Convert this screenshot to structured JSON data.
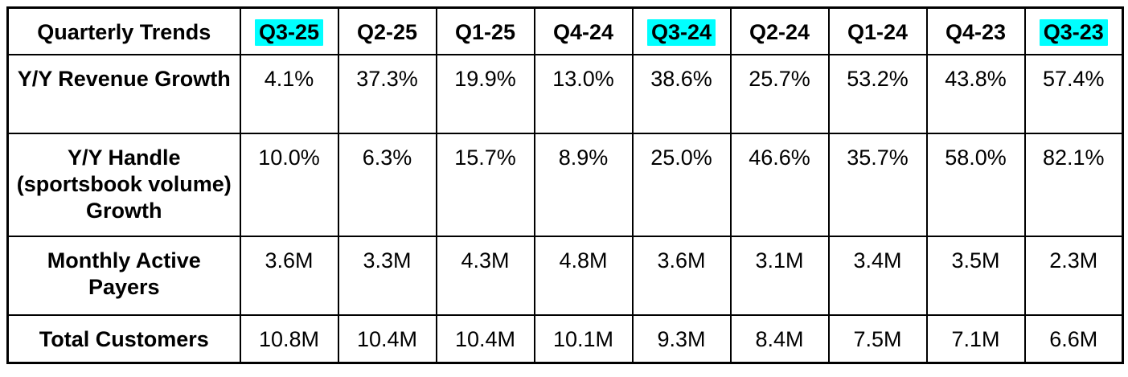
{
  "highlight_color": "#00ffff",
  "table": {
    "header": {
      "label": "Quarterly Trends",
      "columns": [
        {
          "label": "Q3-25",
          "highlighted": true
        },
        {
          "label": "Q2-25",
          "highlighted": false
        },
        {
          "label": "Q1-25",
          "highlighted": false
        },
        {
          "label": "Q4-24",
          "highlighted": false
        },
        {
          "label": "Q3-24",
          "highlighted": true
        },
        {
          "label": "Q2-24",
          "highlighted": false
        },
        {
          "label": "Q1-24",
          "highlighted": false
        },
        {
          "label": "Q4-23",
          "highlighted": false
        },
        {
          "label": "Q3-23",
          "highlighted": true
        }
      ]
    },
    "rows": [
      {
        "label": "Y/Y Revenue Growth",
        "values": [
          "4.1%",
          "37.3%",
          "19.9%",
          "13.0%",
          "38.6%",
          "25.7%",
          "53.2%",
          "43.8%",
          "57.4%"
        ]
      },
      {
        "label": "Y/Y Handle (sportsbook volume) Growth",
        "values": [
          "10.0%",
          "6.3%",
          "15.7%",
          "8.9%",
          "25.0%",
          "46.6%",
          "35.7%",
          "58.0%",
          "82.1%"
        ]
      },
      {
        "label": "Monthly Active Payers",
        "values": [
          "3.6M",
          "3.3M",
          "4.3M",
          "4.8M",
          "3.6M",
          "3.1M",
          "3.4M",
          "3.5M",
          "2.3M"
        ]
      },
      {
        "label": "Total Customers",
        "values": [
          "10.8M",
          "10.4M",
          "10.4M",
          "10.1M",
          "9.3M",
          "8.4M",
          "7.5M",
          "7.1M",
          "6.6M"
        ]
      }
    ]
  },
  "chart_data": {
    "type": "table",
    "title": "Quarterly Trends",
    "categories": [
      "Q3-25",
      "Q2-25",
      "Q1-25",
      "Q4-24",
      "Q3-24",
      "Q2-24",
      "Q1-24",
      "Q4-23",
      "Q3-23"
    ],
    "series": [
      {
        "name": "Y/Y Revenue Growth",
        "unit": "%",
        "values": [
          4.1,
          37.3,
          19.9,
          13.0,
          38.6,
          25.7,
          53.2,
          43.8,
          57.4
        ]
      },
      {
        "name": "Y/Y Handle (sportsbook volume) Growth",
        "unit": "%",
        "values": [
          10.0,
          6.3,
          15.7,
          8.9,
          25.0,
          46.6,
          35.7,
          58.0,
          82.1
        ]
      },
      {
        "name": "Monthly Active Payers",
        "unit": "M",
        "values": [
          3.6,
          3.3,
          4.3,
          4.8,
          3.6,
          3.1,
          3.4,
          3.5,
          2.3
        ]
      },
      {
        "name": "Total Customers",
        "unit": "M",
        "values": [
          10.8,
          10.4,
          10.4,
          10.1,
          9.3,
          8.4,
          7.5,
          7.1,
          6.6
        ]
      }
    ],
    "highlighted_columns": [
      "Q3-25",
      "Q3-24",
      "Q3-23"
    ],
    "highlight_color": "#00ffff"
  }
}
